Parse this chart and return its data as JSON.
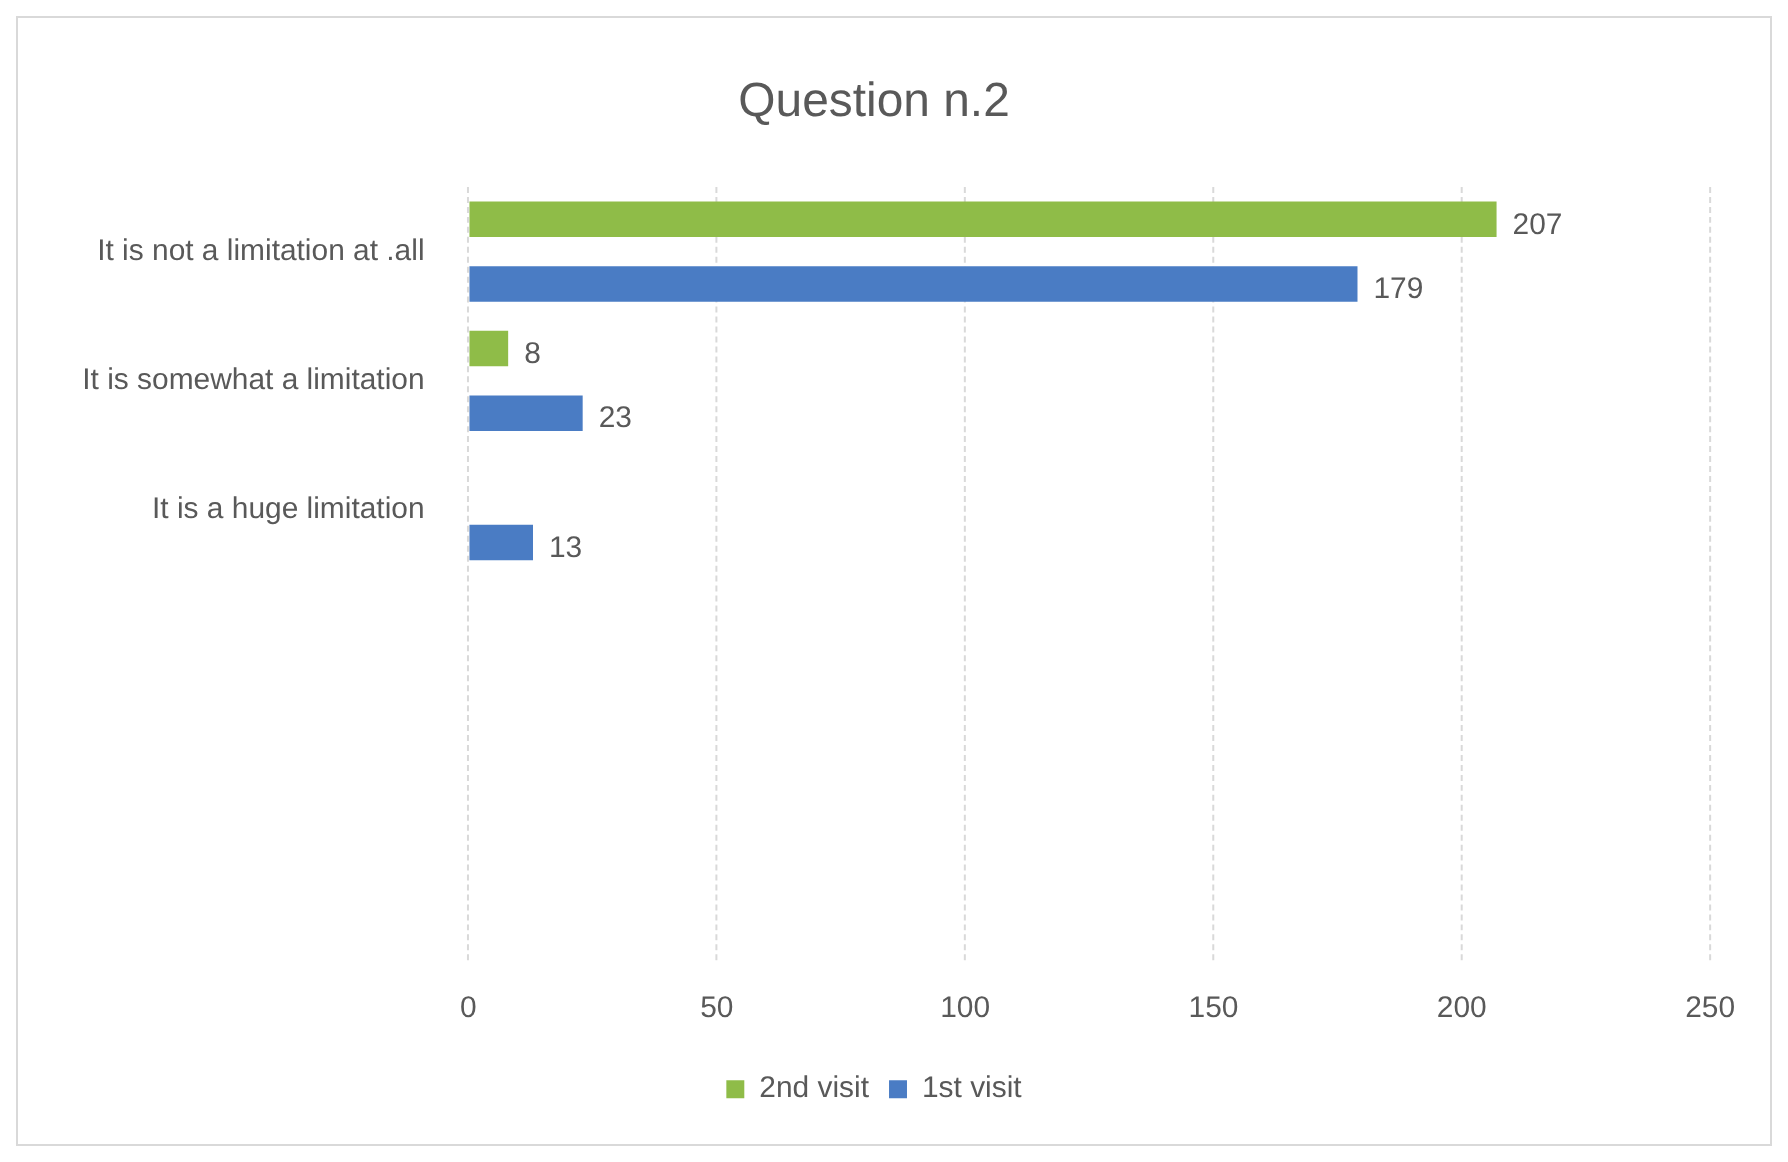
{
  "chart_data": {
    "type": "bar",
    "orientation": "horizontal",
    "title": "Question n.2",
    "categories": [
      "It is not a limitation at .all",
      "It is somewhat a limitation",
      "It is a huge limitation",
      null,
      null,
      null
    ],
    "series": [
      {
        "name": "2nd visit",
        "color": "#8fbc48",
        "values": [
          207,
          8,
          null,
          null,
          null,
          null
        ]
      },
      {
        "name": "1st visit",
        "color": "#4a7cc4",
        "values": [
          179,
          23,
          13,
          null,
          null,
          null
        ]
      }
    ],
    "xlim": [
      0,
      250
    ],
    "xticks": [
      0,
      50,
      100,
      150,
      200,
      250
    ],
    "grid": "x",
    "legend": "bottom",
    "data_labels": true
  }
}
